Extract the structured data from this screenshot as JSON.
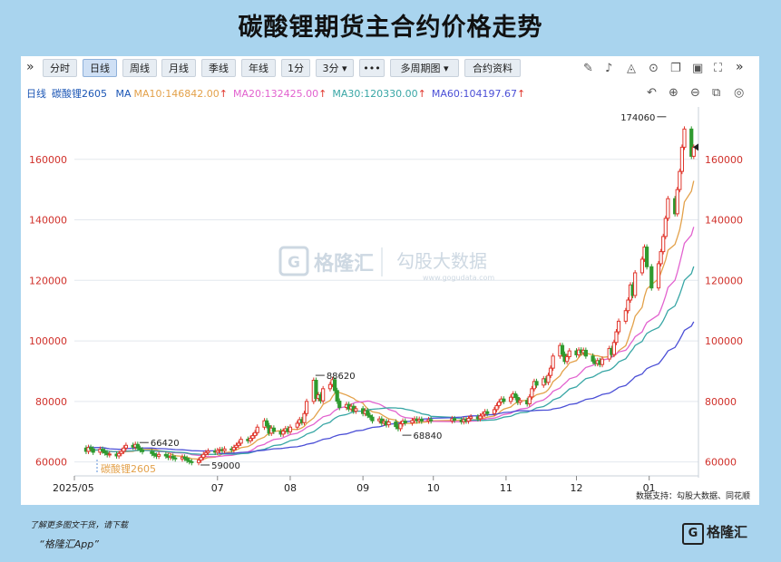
{
  "title": "碳酸锂期货主合约价格走势",
  "toolbar": {
    "periods": [
      "分时",
      "日线",
      "周线",
      "月线",
      "季线",
      "年线",
      "1分",
      "3分 ▾",
      "•••",
      "多周期图 ▾",
      "合约资料"
    ],
    "active": "日线"
  },
  "ma_row": {
    "period": "日线",
    "contract": "碳酸锂2605",
    "ma_label": "MA",
    "ma10": "MA10:146842.00",
    "ma20": "MA20:132425.00",
    "ma30": "MA30:120330.00",
    "ma60": "MA60:104197.67"
  },
  "watermark": {
    "brand": "格隆汇",
    "partner": "勾股大数据",
    "partner_url": "www.gogudata.com"
  },
  "source": "数据支持：勾股大数据、同花顺",
  "footer": {
    "line1": "了解更多图文干货，请下载",
    "line2": "“格隆汇App”",
    "logo": "格隆汇"
  },
  "colors": {
    "up": "#e0362c",
    "down": "#2f9a2f",
    "ma10": "#e3a14a",
    "ma20": "#e262cf",
    "ma30": "#38a6a5",
    "ma60": "#4b4fd6"
  },
  "chart_data": {
    "type": "candlestick",
    "title": "碳酸锂期货主合约价格走势",
    "series_label": "碳酸锂2605",
    "ylim": [
      56000,
      175500
    ],
    "yticks": [
      60000,
      80000,
      100000,
      120000,
      140000,
      160000
    ],
    "x_ticks": [
      "2025/05",
      "07",
      "08",
      "09",
      "10",
      "11",
      "12",
      "01"
    ],
    "annotations": [
      {
        "label": "66420",
        "date": "2025-05-28",
        "value": 66420
      },
      {
        "label": "59000",
        "date": "2025-06-23",
        "value": 59000
      },
      {
        "label": "88620",
        "date": "2025-08-11",
        "value": 88620
      },
      {
        "label": "68840",
        "date": "2025-09-17",
        "value": 68840
      },
      {
        "label": "174060",
        "date": "2026-01-09",
        "value": 174060
      }
    ],
    "last_price_marker": 164000,
    "ma_values": {
      "MA10": 146842.0,
      "MA20": 132425.0,
      "MA30": 120330.0,
      "MA60": 104197.67
    },
    "candles": [
      {
        "d": "2025-05-06",
        "o": 64600,
        "c": 63500
      },
      {
        "d": "2025-05-07",
        "o": 63500,
        "c": 64800
      },
      {
        "d": "2025-05-08",
        "o": 64800,
        "c": 64300
      },
      {
        "d": "2025-05-09",
        "o": 64300,
        "c": 63200
      },
      {
        "d": "2025-05-12",
        "o": 63200,
        "c": 64200
      },
      {
        "d": "2025-05-13",
        "o": 64200,
        "c": 63600
      },
      {
        "d": "2025-05-14",
        "o": 63600,
        "c": 63000
      },
      {
        "d": "2025-05-15",
        "o": 63000,
        "c": 62400
      },
      {
        "d": "2025-05-16",
        "o": 62400,
        "c": 62600
      },
      {
        "d": "2025-05-19",
        "o": 62600,
        "c": 62000
      },
      {
        "d": "2025-05-20",
        "o": 62000,
        "c": 62800
      },
      {
        "d": "2025-05-21",
        "o": 62800,
        "c": 63500
      },
      {
        "d": "2025-05-22",
        "o": 63500,
        "c": 64600
      },
      {
        "d": "2025-05-23",
        "o": 64600,
        "c": 65500
      },
      {
        "d": "2025-05-26",
        "o": 65500,
        "c": 64900
      },
      {
        "d": "2025-05-27",
        "o": 64900,
        "c": 65800
      },
      {
        "d": "2025-05-28",
        "o": 65800,
        "c": 64500
      },
      {
        "d": "2025-05-29",
        "o": 64500,
        "c": 64000
      },
      {
        "d": "2025-05-30",
        "o": 64000,
        "c": 63400
      },
      {
        "d": "2025-06-03",
        "o": 63400,
        "c": 62800
      },
      {
        "d": "2025-06-04",
        "o": 62800,
        "c": 62200
      },
      {
        "d": "2025-06-05",
        "o": 62200,
        "c": 61900
      },
      {
        "d": "2025-06-06",
        "o": 61900,
        "c": 62500
      },
      {
        "d": "2025-06-09",
        "o": 62500,
        "c": 62000
      },
      {
        "d": "2025-06-10",
        "o": 62000,
        "c": 61500
      },
      {
        "d": "2025-06-11",
        "o": 61500,
        "c": 61900
      },
      {
        "d": "2025-06-12",
        "o": 61900,
        "c": 61300
      },
      {
        "d": "2025-06-13",
        "o": 61300,
        "c": 61000
      },
      {
        "d": "2025-06-16",
        "o": 61000,
        "c": 61600
      },
      {
        "d": "2025-06-17",
        "o": 61600,
        "c": 61200
      },
      {
        "d": "2025-06-18",
        "o": 61200,
        "c": 60500
      },
      {
        "d": "2025-06-19",
        "o": 60500,
        "c": 60100
      },
      {
        "d": "2025-06-20",
        "o": 60100,
        "c": 59800
      },
      {
        "d": "2025-06-23",
        "o": 59800,
        "c": 60600
      },
      {
        "d": "2025-06-24",
        "o": 60600,
        "c": 61500
      },
      {
        "d": "2025-06-25",
        "o": 61500,
        "c": 62500
      },
      {
        "d": "2025-06-26",
        "o": 62500,
        "c": 63100
      },
      {
        "d": "2025-06-27",
        "o": 63100,
        "c": 63600
      },
      {
        "d": "2025-06-30",
        "o": 63600,
        "c": 63200
      },
      {
        "d": "2025-07-01",
        "o": 63200,
        "c": 63800
      },
      {
        "d": "2025-07-02",
        "o": 63800,
        "c": 64100
      },
      {
        "d": "2025-07-03",
        "o": 64100,
        "c": 63700
      },
      {
        "d": "2025-07-04",
        "o": 63700,
        "c": 64300
      },
      {
        "d": "2025-07-07",
        "o": 64300,
        "c": 64000
      },
      {
        "d": "2025-07-08",
        "o": 64000,
        "c": 64800
      },
      {
        "d": "2025-07-09",
        "o": 64800,
        "c": 65500
      },
      {
        "d": "2025-07-10",
        "o": 65500,
        "c": 66200
      },
      {
        "d": "2025-07-11",
        "o": 66200,
        "c": 67500
      },
      {
        "d": "2025-07-14",
        "o": 67500,
        "c": 67000
      },
      {
        "d": "2025-07-15",
        "o": 67000,
        "c": 67800
      },
      {
        "d": "2025-07-16",
        "o": 67800,
        "c": 68700
      },
      {
        "d": "2025-07-17",
        "o": 68700,
        "c": 69700
      },
      {
        "d": "2025-07-18",
        "o": 69700,
        "c": 71500
      },
      {
        "d": "2025-07-21",
        "o": 71500,
        "c": 73600
      },
      {
        "d": "2025-07-22",
        "o": 73600,
        "c": 72000
      },
      {
        "d": "2025-07-23",
        "o": 72000,
        "c": 69500
      },
      {
        "d": "2025-07-24",
        "o": 69500,
        "c": 71200
      },
      {
        "d": "2025-07-25",
        "o": 71200,
        "c": 70100
      },
      {
        "d": "2025-07-28",
        "o": 70100,
        "c": 69200
      },
      {
        "d": "2025-07-29",
        "o": 69200,
        "c": 70200
      },
      {
        "d": "2025-07-30",
        "o": 70200,
        "c": 71000
      },
      {
        "d": "2025-07-31",
        "o": 71000,
        "c": 70000
      },
      {
        "d": "2025-08-01",
        "o": 70000,
        "c": 71500
      },
      {
        "d": "2025-08-04",
        "o": 71500,
        "c": 72800
      },
      {
        "d": "2025-08-05",
        "o": 72800,
        "c": 74000
      },
      {
        "d": "2025-08-06",
        "o": 74000,
        "c": 73000
      },
      {
        "d": "2025-08-07",
        "o": 73000,
        "c": 76000
      },
      {
        "d": "2025-08-08",
        "o": 76000,
        "c": 80000
      },
      {
        "d": "2025-08-11",
        "o": 80000,
        "c": 87000
      },
      {
        "d": "2025-08-12",
        "o": 87000,
        "c": 81000
      },
      {
        "d": "2025-08-13",
        "o": 81000,
        "c": 82200
      },
      {
        "d": "2025-08-14",
        "o": 82200,
        "c": 80200
      },
      {
        "d": "2025-08-15",
        "o": 80200,
        "c": 84200
      },
      {
        "d": "2025-08-18",
        "o": 84200,
        "c": 85600
      },
      {
        "d": "2025-08-19",
        "o": 85600,
        "c": 87200
      },
      {
        "d": "2025-08-20",
        "o": 87200,
        "c": 83600
      },
      {
        "d": "2025-08-21",
        "o": 83600,
        "c": 80100
      },
      {
        "d": "2025-08-22",
        "o": 80100,
        "c": 78000
      },
      {
        "d": "2025-08-25",
        "o": 78000,
        "c": 79000
      },
      {
        "d": "2025-08-26",
        "o": 79000,
        "c": 77500
      },
      {
        "d": "2025-08-27",
        "o": 77500,
        "c": 78400
      },
      {
        "d": "2025-08-28",
        "o": 78400,
        "c": 76800
      },
      {
        "d": "2025-08-29",
        "o": 76800,
        "c": 77600
      },
      {
        "d": "2025-09-01",
        "o": 77600,
        "c": 76000
      },
      {
        "d": "2025-09-02",
        "o": 76000,
        "c": 76900
      },
      {
        "d": "2025-09-03",
        "o": 76900,
        "c": 75400
      },
      {
        "d": "2025-09-04",
        "o": 75400,
        "c": 74800
      },
      {
        "d": "2025-09-05",
        "o": 74800,
        "c": 73600
      },
      {
        "d": "2025-09-08",
        "o": 73600,
        "c": 74200
      },
      {
        "d": "2025-09-09",
        "o": 74200,
        "c": 72800
      },
      {
        "d": "2025-09-10",
        "o": 72800,
        "c": 73400
      },
      {
        "d": "2025-09-11",
        "o": 73400,
        "c": 72300
      },
      {
        "d": "2025-09-12",
        "o": 72300,
        "c": 73200
      },
      {
        "d": "2025-09-15",
        "o": 73200,
        "c": 71700
      },
      {
        "d": "2025-09-16",
        "o": 71700,
        "c": 71000
      },
      {
        "d": "2025-09-17",
        "o": 71000,
        "c": 72600
      },
      {
        "d": "2025-09-18",
        "o": 72600,
        "c": 73500
      },
      {
        "d": "2025-09-19",
        "o": 73500,
        "c": 72900
      },
      {
        "d": "2025-09-22",
        "o": 72900,
        "c": 73700
      },
      {
        "d": "2025-09-23",
        "o": 73700,
        "c": 74200
      },
      {
        "d": "2025-09-24",
        "o": 74200,
        "c": 73600
      },
      {
        "d": "2025-09-25",
        "o": 73600,
        "c": 74100
      },
      {
        "d": "2025-09-26",
        "o": 74100,
        "c": 73500
      },
      {
        "d": "2025-09-29",
        "o": 73500,
        "c": 74000
      },
      {
        "d": "2025-09-30",
        "o": 74000,
        "c": 73600
      },
      {
        "d": "2025-10-09",
        "o": 73600,
        "c": 74300
      },
      {
        "d": "2025-10-10",
        "o": 74300,
        "c": 73800
      },
      {
        "d": "2025-10-13",
        "o": 73800,
        "c": 73300
      },
      {
        "d": "2025-10-14",
        "o": 73300,
        "c": 74000
      },
      {
        "d": "2025-10-15",
        "o": 74000,
        "c": 73500
      },
      {
        "d": "2025-10-16",
        "o": 73500,
        "c": 74400
      },
      {
        "d": "2025-10-17",
        "o": 74400,
        "c": 74900
      },
      {
        "d": "2025-10-20",
        "o": 74900,
        "c": 74300
      },
      {
        "d": "2025-10-21",
        "o": 74300,
        "c": 75200
      },
      {
        "d": "2025-10-22",
        "o": 75200,
        "c": 75800
      },
      {
        "d": "2025-10-23",
        "o": 75800,
        "c": 76600
      },
      {
        "d": "2025-10-24",
        "o": 76600,
        "c": 76000
      },
      {
        "d": "2025-10-27",
        "o": 76000,
        "c": 77300
      },
      {
        "d": "2025-10-28",
        "o": 77300,
        "c": 78600
      },
      {
        "d": "2025-10-29",
        "o": 78600,
        "c": 79800
      },
      {
        "d": "2025-10-30",
        "o": 79800,
        "c": 80800
      },
      {
        "d": "2025-10-31",
        "o": 80800,
        "c": 80000
      },
      {
        "d": "2025-11-03",
        "o": 80000,
        "c": 81400
      },
      {
        "d": "2025-11-04",
        "o": 81400,
        "c": 82500
      },
      {
        "d": "2025-11-05",
        "o": 82500,
        "c": 81300
      },
      {
        "d": "2025-11-06",
        "o": 81300,
        "c": 79700
      },
      {
        "d": "2025-11-07",
        "o": 79700,
        "c": 80300
      },
      {
        "d": "2025-11-10",
        "o": 80300,
        "c": 79200
      },
      {
        "d": "2025-11-11",
        "o": 79200,
        "c": 81500
      },
      {
        "d": "2025-11-12",
        "o": 81500,
        "c": 84200
      },
      {
        "d": "2025-11-13",
        "o": 84200,
        "c": 86600
      },
      {
        "d": "2025-11-14",
        "o": 86600,
        "c": 85400
      },
      {
        "d": "2025-11-17",
        "o": 85400,
        "c": 87500
      },
      {
        "d": "2025-11-18",
        "o": 87500,
        "c": 86300
      },
      {
        "d": "2025-11-19",
        "o": 86300,
        "c": 88600
      },
      {
        "d": "2025-11-20",
        "o": 88600,
        "c": 91000
      },
      {
        "d": "2025-11-21",
        "o": 91000,
        "c": 95000
      },
      {
        "d": "2025-11-24",
        "o": 95000,
        "c": 98500
      },
      {
        "d": "2025-11-25",
        "o": 98500,
        "c": 95600
      },
      {
        "d": "2025-11-26",
        "o": 95600,
        "c": 93200
      },
      {
        "d": "2025-11-27",
        "o": 93200,
        "c": 94800
      },
      {
        "d": "2025-11-28",
        "o": 94800,
        "c": 96700
      },
      {
        "d": "2025-12-01",
        "o": 96700,
        "c": 95400
      },
      {
        "d": "2025-12-02",
        "o": 95400,
        "c": 97000
      },
      {
        "d": "2025-12-03",
        "o": 97000,
        "c": 96100
      },
      {
        "d": "2025-12-04",
        "o": 96100,
        "c": 96900
      },
      {
        "d": "2025-12-05",
        "o": 96900,
        "c": 95000
      },
      {
        "d": "2025-12-08",
        "o": 95000,
        "c": 93300
      },
      {
        "d": "2025-12-09",
        "o": 93300,
        "c": 92500
      },
      {
        "d": "2025-12-10",
        "o": 92500,
        "c": 93500
      },
      {
        "d": "2025-12-11",
        "o": 93500,
        "c": 92200
      },
      {
        "d": "2025-12-12",
        "o": 92200,
        "c": 94000
      },
      {
        "d": "2025-12-15",
        "o": 94000,
        "c": 97500
      },
      {
        "d": "2025-12-16",
        "o": 97500,
        "c": 95500
      },
      {
        "d": "2025-12-17",
        "o": 95500,
        "c": 99500
      },
      {
        "d": "2025-12-18",
        "o": 99500,
        "c": 103000
      },
      {
        "d": "2025-12-19",
        "o": 103000,
        "c": 106500
      },
      {
        "d": "2025-12-22",
        "o": 106500,
        "c": 110000
      },
      {
        "d": "2025-12-23",
        "o": 110000,
        "c": 113500
      },
      {
        "d": "2025-12-24",
        "o": 113500,
        "c": 118500
      },
      {
        "d": "2025-12-25",
        "o": 118500,
        "c": 115000
      },
      {
        "d": "2025-12-26",
        "o": 115000,
        "c": 122500
      },
      {
        "d": "2025-12-29",
        "o": 122500,
        "c": 127000
      },
      {
        "d": "2025-12-30",
        "o": 127000,
        "c": 131000
      },
      {
        "d": "2025-12-31",
        "o": 131000,
        "c": 124500
      },
      {
        "d": "2026-01-02",
        "o": 124500,
        "c": 117500
      },
      {
        "d": "2026-01-05",
        "o": 117500,
        "c": 125500
      },
      {
        "d": "2026-01-06",
        "o": 125500,
        "c": 129500
      },
      {
        "d": "2026-01-07",
        "o": 129500,
        "c": 134500
      },
      {
        "d": "2026-01-08",
        "o": 134500,
        "c": 140500
      },
      {
        "d": "2026-01-09",
        "o": 140500,
        "c": 147000
      },
      {
        "d": "2026-01-12",
        "o": 147000,
        "c": 142000
      },
      {
        "d": "2026-01-13",
        "o": 142000,
        "c": 150000
      },
      {
        "d": "2026-01-14",
        "o": 150000,
        "c": 156000
      },
      {
        "d": "2026-01-15",
        "o": 156000,
        "c": 164000
      },
      {
        "d": "2026-01-16",
        "o": 164000,
        "c": 170000
      },
      {
        "d": "2026-01-19",
        "o": 170000,
        "c": 161000
      },
      {
        "d": "2026-01-20",
        "o": 161000,
        "c": 164000
      }
    ]
  }
}
